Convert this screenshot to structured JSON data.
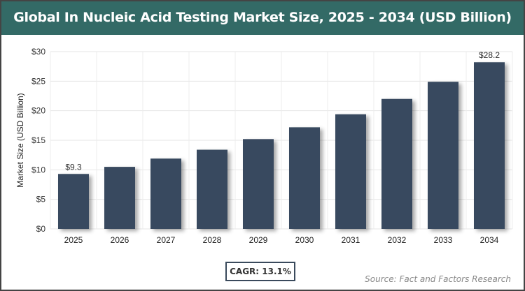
{
  "chart_data": {
    "type": "bar",
    "title": "Global In Nucleic Acid Testing Market Size, 2025 - 2034 (USD Billion)",
    "xlabel": "",
    "ylabel": "Market Size (USD Billion)",
    "categories": [
      "2025",
      "2026",
      "2027",
      "2028",
      "2029",
      "2030",
      "2031",
      "2032",
      "2033",
      "2034"
    ],
    "values": [
      9.3,
      10.5,
      11.9,
      13.4,
      15.2,
      17.2,
      19.4,
      22.0,
      24.9,
      28.2
    ],
    "data_labels": {
      "2025": "$9.3",
      "2034": "$28.2"
    },
    "ylim": [
      0,
      30
    ],
    "yticks": [
      0,
      5,
      10,
      15,
      20,
      25,
      30
    ],
    "ytick_labels": [
      "$0",
      "$5",
      "$10",
      "$15",
      "$20",
      "$25",
      "$30"
    ],
    "grid": true,
    "bar_color": "#374a5f"
  },
  "cagr": "CAGR: 13.1%",
  "source": "Source: Fact and Factors Research",
  "colors": {
    "header": "#336a66"
  }
}
